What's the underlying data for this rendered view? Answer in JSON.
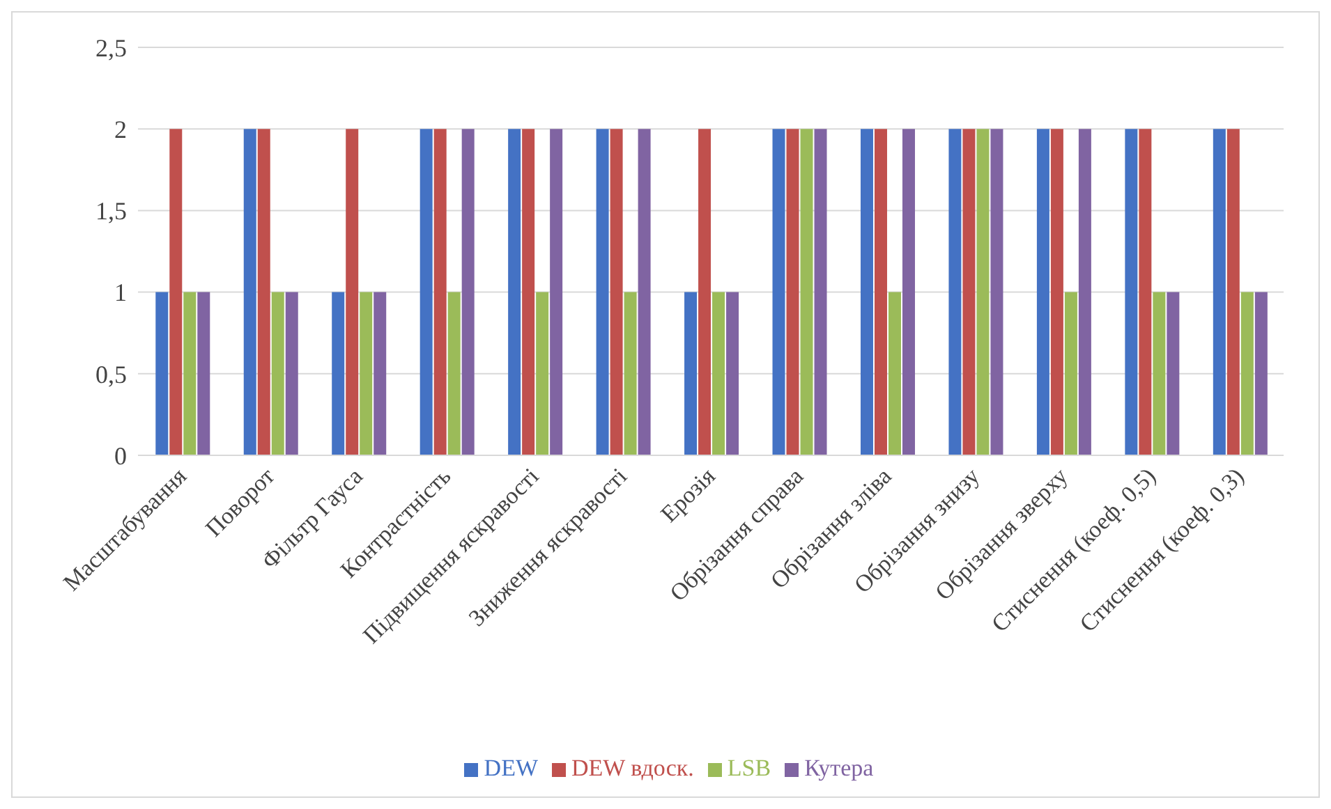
{
  "chart_data": {
    "type": "bar",
    "categories": [
      "Масштабування",
      "Поворот",
      "Фільтр Гауса",
      "Контрастність",
      "Підвищення яскравості",
      "Зниження яскравості",
      "Ерозія",
      "Обрізання справа",
      "Обрізання зліва",
      "Обрізання знизу",
      "Обрізання зверху",
      "Стиснення (коеф. 0,5)",
      "Стиснення (коеф. 0,3)"
    ],
    "series": [
      {
        "name": "DEW",
        "color": "#4472c4",
        "values": [
          1,
          2,
          1,
          2,
          2,
          2,
          1,
          2,
          2,
          2,
          2,
          2,
          2
        ]
      },
      {
        "name": "DEW вдоск.",
        "color": "#c0504d",
        "values": [
          2,
          2,
          2,
          2,
          2,
          2,
          2,
          2,
          2,
          2,
          2,
          2,
          2
        ]
      },
      {
        "name": "LSB",
        "color": "#9bbb59",
        "values": [
          1,
          1,
          1,
          1,
          1,
          1,
          1,
          2,
          1,
          2,
          1,
          1,
          1
        ]
      },
      {
        "name": "Кутера",
        "color": "#8064a2",
        "values": [
          1,
          1,
          1,
          2,
          2,
          2,
          1,
          2,
          2,
          2,
          2,
          1,
          1
        ]
      }
    ],
    "ylim": [
      0,
      2.5
    ],
    "yticks": [
      0,
      {
        "value": 0.5,
        "label": "0,5"
      },
      1,
      {
        "value": 1.5,
        "label": "1,5"
      },
      2,
      {
        "value": 2.5,
        "label": "2,5"
      }
    ],
    "grid": "y",
    "legend": "bottom"
  }
}
